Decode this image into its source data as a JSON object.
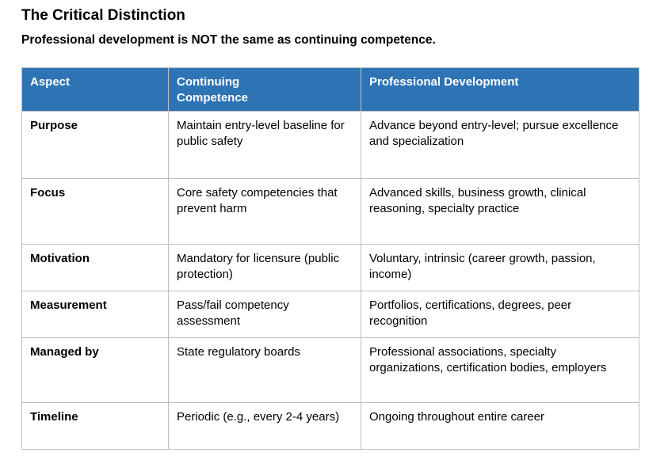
{
  "page": {
    "title": "The Critical Distinction",
    "subtitle": "Professional development is NOT the same as continuing competence."
  },
  "colors": {
    "header_background": "#2E74B5",
    "header_text": "#FFFFFF",
    "grid_border": "#BFBFBF",
    "body_text": "#000000"
  },
  "table": {
    "headers": {
      "aspect": "Aspect",
      "continuing_competence": "Continuing\nCompetence",
      "professional_development": "Professional Development"
    },
    "rows": [
      {
        "aspect": "Purpose",
        "continuing_competence": "Maintain entry-level baseline for public safety",
        "professional_development": "Advance beyond entry-level; pursue excellence and specialization"
      },
      {
        "aspect": "Focus",
        "continuing_competence": "Core safety competencies that prevent harm",
        "professional_development": "Advanced skills, business growth, clinical reasoning, specialty practice"
      },
      {
        "aspect": "Motivation",
        "continuing_competence": "Mandatory for licensure (public protection)",
        "professional_development": "Voluntary, intrinsic (career growth, passion, income)"
      },
      {
        "aspect": "Measurement",
        "continuing_competence": "Pass/fail competency assessment",
        "professional_development": "Portfolios, certifications, degrees, peer recognition"
      },
      {
        "aspect": "Managed by",
        "continuing_competence": "State regulatory boards",
        "professional_development": "Professional associations, specialty organizations, certification bodies, employers"
      },
      {
        "aspect": "Timeline",
        "continuing_competence": "Periodic (e.g., every 2-4 years)",
        "professional_development": "Ongoing throughout entire career"
      }
    ]
  }
}
